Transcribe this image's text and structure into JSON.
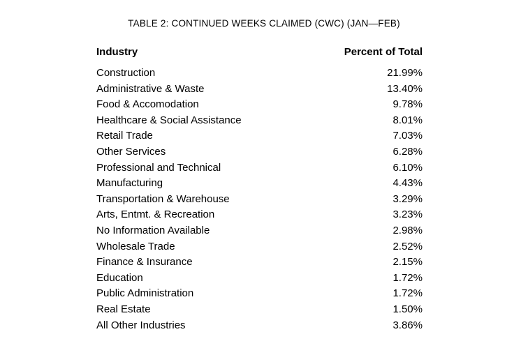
{
  "table": {
    "title": "TABLE 2: CONTINUED WEEKS CLAIMED (CWC) (JAN—FEB)",
    "columns": {
      "industry": "Industry",
      "percent": "Percent of Total"
    },
    "rows": [
      {
        "industry": "Construction",
        "percent": "21.99%"
      },
      {
        "industry": "Administrative & Waste",
        "percent": "13.40%"
      },
      {
        "industry": "Food & Accomodation",
        "percent": "9.78%"
      },
      {
        "industry": "Healthcare & Social Assistance",
        "percent": "8.01%"
      },
      {
        "industry": "Retail Trade",
        "percent": "7.03%"
      },
      {
        "industry": "Other Services",
        "percent": "6.28%"
      },
      {
        "industry": "Professional and Technical",
        "percent": "6.10%"
      },
      {
        "industry": "Manufacturing",
        "percent": "4.43%"
      },
      {
        "industry": "Transportation & Warehouse",
        "percent": "3.29%"
      },
      {
        "industry": "Arts, Entmt. & Recreation",
        "percent": "3.23%"
      },
      {
        "industry": "No Information Available",
        "percent": "2.98%"
      },
      {
        "industry": "Wholesale Trade",
        "percent": "2.52%"
      },
      {
        "industry": "Finance & Insurance",
        "percent": "2.15%"
      },
      {
        "industry": "Education",
        "percent": "1.72%"
      },
      {
        "industry": "Public Administration",
        "percent": "1.72%"
      },
      {
        "industry": "Real Estate",
        "percent": "1.50%"
      },
      {
        "industry": "All Other Industries",
        "percent": "3.86%"
      }
    ],
    "text_color": "#000000",
    "background_color": "#ffffff"
  }
}
